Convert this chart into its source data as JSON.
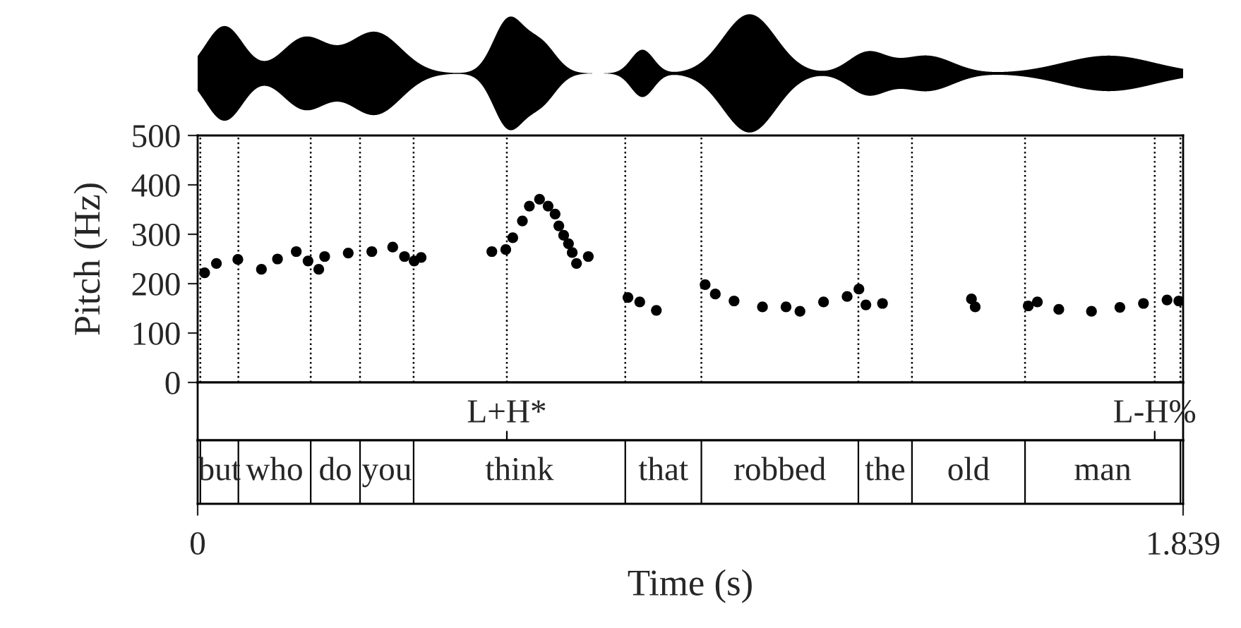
{
  "chart_data": {
    "type": "scatter",
    "xlabel": "Time (s)",
    "ylabel": "Pitch (Hz)",
    "x": [
      0.013,
      0.035,
      0.075,
      0.119,
      0.149,
      0.184,
      0.206,
      0.226,
      0.237,
      0.281,
      0.325,
      0.364,
      0.386,
      0.404,
      0.417,
      0.549,
      0.575,
      0.588,
      0.606,
      0.619,
      0.638,
      0.654,
      0.667,
      0.674,
      0.683,
      0.692,
      0.699,
      0.707,
      0.729,
      0.803,
      0.825,
      0.856,
      0.947,
      0.966,
      1.001,
      1.054,
      1.098,
      1.124,
      1.168,
      1.212,
      1.234,
      1.247,
      1.278,
      1.444,
      1.451,
      1.55,
      1.567,
      1.607,
      1.668,
      1.721,
      1.765,
      1.809,
      1.831
    ],
    "values": [
      222,
      241,
      249,
      229,
      250,
      265,
      246,
      229,
      255,
      262,
      265,
      274,
      255,
      246,
      253,
      265,
      269,
      293,
      327,
      357,
      371,
      357,
      341,
      317,
      298,
      281,
      263,
      241,
      255,
      172,
      163,
      146,
      198,
      179,
      165,
      153,
      153,
      144,
      163,
      174,
      189,
      157,
      160,
      169,
      153,
      155,
      163,
      148,
      144,
      152,
      160,
      167,
      165
    ],
    "color": "#000000",
    "marker": "circle",
    "xlim": [
      0,
      1.839
    ],
    "xticks": [
      0,
      1.839
    ],
    "ylim": [
      0,
      500
    ],
    "yticks": [
      0,
      100,
      200,
      300,
      400,
      500
    ],
    "grid": false,
    "ref_lines": [
      {
        "axis": "x",
        "value": 0.005,
        "line_style": "dotted"
      },
      {
        "axis": "x",
        "value": 0.076,
        "line_style": "dotted"
      },
      {
        "axis": "x",
        "value": 0.211,
        "line_style": "dotted"
      },
      {
        "axis": "x",
        "value": 0.303,
        "line_style": "dotted"
      },
      {
        "axis": "x",
        "value": 0.403,
        "line_style": "dotted"
      },
      {
        "axis": "x",
        "value": 0.577,
        "line_style": "dotted",
        "label": "L+H*"
      },
      {
        "axis": "x",
        "value": 0.798,
        "line_style": "dotted"
      },
      {
        "axis": "x",
        "value": 0.94,
        "line_style": "dotted"
      },
      {
        "axis": "x",
        "value": 1.233,
        "line_style": "dotted"
      },
      {
        "axis": "x",
        "value": 1.333,
        "line_style": "dotted"
      },
      {
        "axis": "x",
        "value": 1.544,
        "line_style": "dotted"
      },
      {
        "axis": "x",
        "value": 1.786,
        "line_style": "dotted",
        "label": "L-H%"
      },
      {
        "axis": "x",
        "value": 1.834,
        "line_style": "dotted"
      }
    ],
    "annotations": [
      "but",
      "who",
      "do",
      "you",
      "think",
      "that",
      "robbed",
      "the",
      "old",
      "man"
    ]
  }
}
